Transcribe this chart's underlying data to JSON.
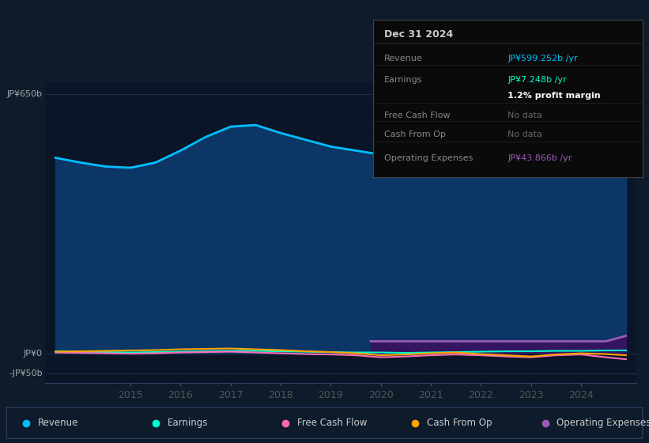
{
  "bg_color": "#0d1b2a",
  "plot_bg_color": "#0a1628",
  "grid_color": "#1e3a5f",
  "ylabel_top": "JP¥650b",
  "ylabel_zero": "JP¥0",
  "ylabel_neg": "-JP¥50b",
  "x_ticks": [
    2015,
    2016,
    2017,
    2018,
    2019,
    2020,
    2021,
    2022,
    2023,
    2024
  ],
  "legend_items": [
    {
      "label": "Revenue",
      "color": "#00bfff"
    },
    {
      "label": "Earnings",
      "color": "#00ffcc"
    },
    {
      "label": "Free Cash Flow",
      "color": "#ff69b4"
    },
    {
      "label": "Cash From Op",
      "color": "#ffa500"
    },
    {
      "label": "Operating Expenses",
      "color": "#9b59b6"
    }
  ],
  "revenue": {
    "x": [
      2013.5,
      2014.0,
      2014.5,
      2015.0,
      2015.5,
      2016.0,
      2016.5,
      2017.0,
      2017.5,
      2018.0,
      2018.5,
      2019.0,
      2019.5,
      2020.0,
      2020.5,
      2021.0,
      2021.5,
      2022.0,
      2022.5,
      2023.0,
      2023.5,
      2024.0,
      2024.5,
      2024.9
    ],
    "y": [
      490,
      478,
      468,
      465,
      478,
      508,
      542,
      568,
      572,
      552,
      535,
      518,
      508,
      498,
      478,
      468,
      473,
      488,
      503,
      518,
      538,
      558,
      578,
      599
    ],
    "color": "#00bfff",
    "fill_color": "#0d3a6e",
    "linewidth": 2.0
  },
  "earnings": {
    "x": [
      2013.5,
      2014.0,
      2014.5,
      2015.0,
      2015.5,
      2016.0,
      2016.5,
      2017.0,
      2017.5,
      2018.0,
      2018.5,
      2019.0,
      2019.5,
      2020.0,
      2020.5,
      2021.0,
      2021.5,
      2022.0,
      2022.5,
      2023.0,
      2023.5,
      2024.0,
      2024.5,
      2024.9
    ],
    "y": [
      5,
      4,
      3,
      2,
      3,
      4,
      5,
      6,
      6,
      5,
      4,
      3,
      2,
      2,
      1,
      2,
      3,
      4,
      5,
      5,
      6,
      6,
      7,
      7.248
    ],
    "color": "#00ffcc",
    "linewidth": 1.5
  },
  "free_cash_flow": {
    "x": [
      2013.5,
      2014.0,
      2014.5,
      2015.0,
      2015.5,
      2016.0,
      2016.5,
      2017.0,
      2017.5,
      2018.0,
      2018.5,
      2019.0,
      2019.5,
      2020.0,
      2020.5,
      2021.0,
      2021.5,
      2022.0,
      2022.5,
      2023.0,
      2023.5,
      2024.0,
      2024.5,
      2024.9
    ],
    "y": [
      2,
      1,
      0,
      -1,
      0,
      2,
      3,
      4,
      2,
      0,
      -2,
      -3,
      -5,
      -10,
      -8,
      -5,
      -3,
      -5,
      -8,
      -10,
      -5,
      -3,
      -10,
      -15
    ],
    "color": "#ff6eb4",
    "linewidth": 1.5
  },
  "cash_from_op": {
    "x": [
      2013.5,
      2014.0,
      2014.5,
      2015.0,
      2015.5,
      2016.0,
      2016.5,
      2017.0,
      2017.5,
      2018.0,
      2018.5,
      2019.0,
      2019.5,
      2020.0,
      2020.5,
      2021.0,
      2021.5,
      2022.0,
      2022.5,
      2023.0,
      2023.5,
      2024.0,
      2024.5,
      2024.9
    ],
    "y": [
      4,
      5,
      6,
      7,
      8,
      10,
      11,
      12,
      10,
      8,
      5,
      3,
      0,
      -5,
      -3,
      0,
      2,
      -2,
      -5,
      -8,
      -3,
      0,
      -2,
      -5
    ],
    "color": "#ffa500",
    "linewidth": 1.5
  },
  "operating_expenses": {
    "x": [
      2019.8,
      2020.0,
      2020.5,
      2021.0,
      2021.5,
      2022.0,
      2022.5,
      2023.0,
      2023.5,
      2024.0,
      2024.5,
      2024.9
    ],
    "y": [
      30,
      30,
      30,
      30,
      30,
      30,
      30,
      30,
      30,
      30,
      30,
      43.866
    ],
    "color": "#9b59b6",
    "fill_color": "#3a1060",
    "linewidth": 2.0
  },
  "info_box": {
    "bg_color": "#0a0a0a",
    "border_color": "#444444",
    "title": "Dec 31 2024",
    "rows": [
      {
        "label": "Revenue",
        "value": "JP¥599.252b /yr",
        "value_color": "#00bfff"
      },
      {
        "label": "Earnings",
        "value": "JP¥7.248b /yr",
        "value_color": "#00ffcc"
      },
      {
        "label": "",
        "value": "1.2% profit margin",
        "value_color": "#ffffff"
      },
      {
        "label": "Free Cash Flow",
        "value": "No data",
        "value_color": "#666666"
      },
      {
        "label": "Cash From Op",
        "value": "No data",
        "value_color": "#666666"
      },
      {
        "label": "Operating Expenses",
        "value": "JP¥43.866b /yr",
        "value_color": "#9b59b6"
      }
    ]
  },
  "ylim": [
    -75,
    680
  ],
  "xlim": [
    2013.3,
    2025.1
  ]
}
